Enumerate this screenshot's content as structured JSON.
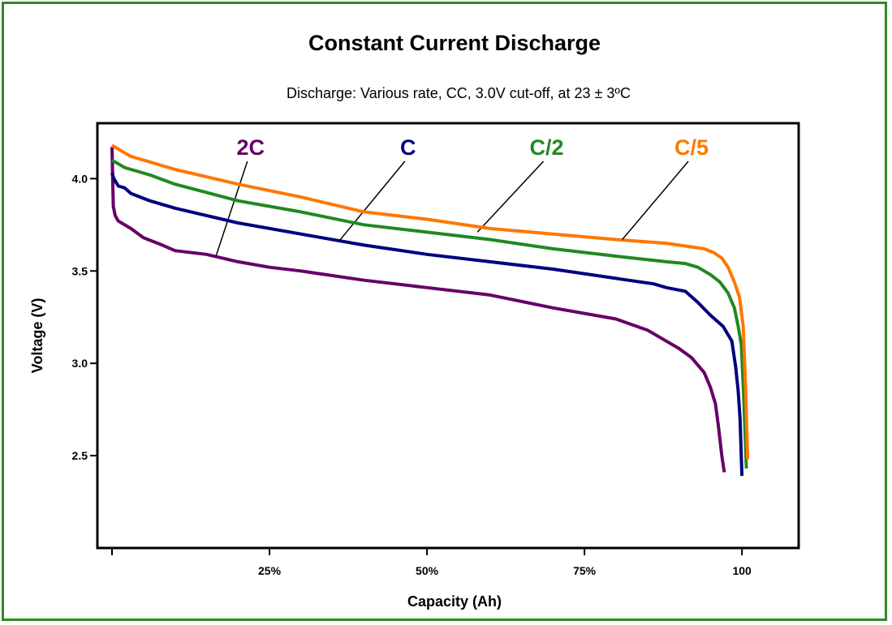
{
  "chart_data": {
    "type": "line",
    "title": "Constant Current Discharge",
    "subtitle": "Discharge: Various rate, CC, 3.0V cut-off, at 23 ± 3ºC",
    "xlabel": "Capacity (Ah)",
    "ylabel": "Voltage (V)",
    "xlim": [
      0,
      109
    ],
    "ylim": [
      2.0,
      4.3
    ],
    "x_ticks": [
      {
        "value": 25,
        "label": "25%"
      },
      {
        "value": 50,
        "label": "50%"
      },
      {
        "value": 75,
        "label": "75%"
      },
      {
        "value": 100,
        "label": "100"
      }
    ],
    "y_ticks": [
      {
        "value": 2.5,
        "label": "2.5"
      },
      {
        "value": 3.0,
        "label": "3.0"
      },
      {
        "value": 3.5,
        "label": "3.5"
      },
      {
        "value": 4.0,
        "label": "4.0"
      }
    ],
    "grid": false,
    "legend": "inline labels with leader lines",
    "series": [
      {
        "name": "2C",
        "color": "#660066",
        "label_at": [
          22,
          4.3
        ],
        "leader_to": [
          16.5,
          3.58
        ],
        "x": [
          0,
          0.2,
          0.5,
          1,
          3,
          5,
          8,
          10,
          15,
          20,
          25,
          30,
          40,
          50,
          60,
          70,
          80,
          85,
          88,
          90,
          92,
          94,
          95,
          95.8,
          96.3,
          96.8,
          97.2
        ],
        "y": [
          4.17,
          3.85,
          3.8,
          3.77,
          3.73,
          3.68,
          3.64,
          3.61,
          3.59,
          3.55,
          3.52,
          3.5,
          3.45,
          3.41,
          3.37,
          3.3,
          3.24,
          3.18,
          3.12,
          3.08,
          3.03,
          2.95,
          2.87,
          2.78,
          2.65,
          2.5,
          2.41
        ]
      },
      {
        "name": "C",
        "color": "#000080",
        "label_at": [
          47,
          4.3
        ],
        "leader_to": [
          36,
          3.66
        ],
        "x": [
          0,
          0.3,
          1,
          2,
          3,
          6,
          10,
          20,
          30,
          40,
          50,
          60,
          70,
          80,
          86,
          88,
          91,
          93,
          95,
          97,
          98.4,
          99,
          99.4,
          99.7,
          100
        ],
        "y": [
          4.03,
          4.0,
          3.96,
          3.95,
          3.92,
          3.88,
          3.84,
          3.76,
          3.7,
          3.64,
          3.59,
          3.55,
          3.51,
          3.46,
          3.43,
          3.41,
          3.39,
          3.33,
          3.26,
          3.2,
          3.12,
          2.98,
          2.85,
          2.7,
          2.39
        ]
      },
      {
        "name": "C/2",
        "color": "#228822",
        "label_at": [
          69,
          4.3
        ],
        "leader_to": [
          58,
          3.71
        ],
        "x": [
          0,
          1,
          2,
          3,
          6,
          10,
          20,
          30,
          40,
          50,
          60,
          70,
          80,
          88,
          91,
          93,
          95,
          96.5,
          97.8,
          98.8,
          99.4,
          99.9,
          100.3,
          100.7
        ],
        "y": [
          4.1,
          4.08,
          4.06,
          4.05,
          4.02,
          3.97,
          3.88,
          3.82,
          3.75,
          3.71,
          3.67,
          3.62,
          3.58,
          3.55,
          3.54,
          3.52,
          3.48,
          3.44,
          3.38,
          3.3,
          3.2,
          3.1,
          2.8,
          2.43
        ]
      },
      {
        "name": "C/5",
        "color": "#ff7700",
        "label_at": [
          92,
          4.3
        ],
        "leader_to": [
          81,
          3.67
        ],
        "x": [
          0,
          1,
          2,
          3,
          6,
          10,
          20,
          30,
          40,
          50,
          60,
          70,
          80,
          88,
          92,
          94,
          95.5,
          96.8,
          97.8,
          98.8,
          99.6,
          100.2,
          100.6,
          100.9
        ],
        "y": [
          4.18,
          4.16,
          4.14,
          4.12,
          4.09,
          4.05,
          3.97,
          3.9,
          3.82,
          3.78,
          3.73,
          3.7,
          3.67,
          3.65,
          3.63,
          3.62,
          3.6,
          3.57,
          3.52,
          3.44,
          3.36,
          3.2,
          2.85,
          2.48
        ]
      }
    ]
  }
}
